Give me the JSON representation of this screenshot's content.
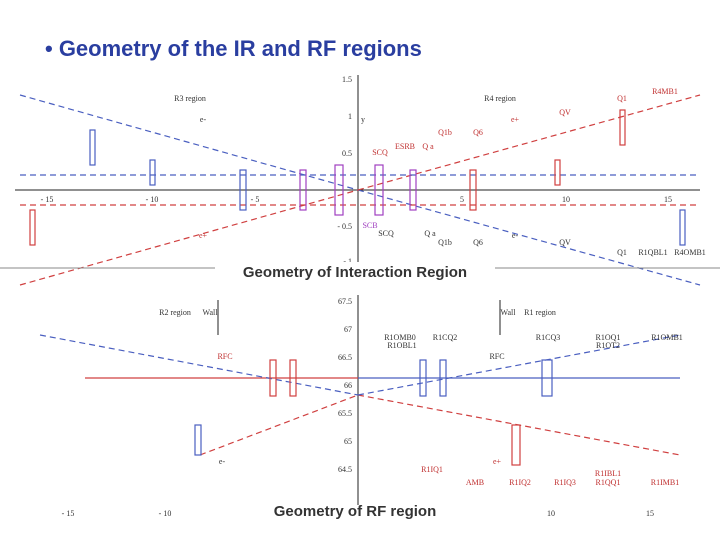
{
  "header": {
    "title": "• Geometry of the IR and RF regions"
  },
  "figures": [
    {
      "caption": "Geometry of Interaction Region",
      "x_ticks": [
        "- 15",
        "- 10",
        "- 5",
        "5",
        "10",
        "15"
      ],
      "y_ticks": [
        "1.5",
        "1",
        "0.5",
        "- 0.5",
        "- 1"
      ],
      "labels": [
        "R3 region",
        "R4 region",
        "Q1",
        "R4MB1",
        "QV",
        "e-",
        "e+",
        "Q1b",
        "Q6",
        "SCQ",
        "ESRB",
        "Q a",
        "y",
        "e+",
        "SCB",
        "SCQ",
        "Q a",
        "Q1b",
        "Q6",
        "e-",
        "QV",
        "Q1",
        "R1QBL1",
        "R4OMB1"
      ]
    },
    {
      "caption": "Geometry of RF region",
      "x_ticks": [
        "- 15",
        "- 10",
        "10",
        "15"
      ],
      "y_ticks": [
        "67.5",
        "67",
        "66.5",
        "66",
        "65.5",
        "65",
        "64.5"
      ],
      "labels": [
        "R2 region",
        "Wall",
        "Wall",
        "R1 region",
        "R1OMB0",
        "R1CQ2",
        "R1OBL1",
        "R1CQ3",
        "R1OQ1",
        "R1OT2",
        "R1OMB1",
        "RFC",
        "RFC",
        "e-",
        "e+",
        "R1IQ1",
        "AMB",
        "R1IQ2",
        "R1IQ3",
        "R1QQ1",
        "R1IBL1",
        "R1IMB1"
      ]
    }
  ]
}
